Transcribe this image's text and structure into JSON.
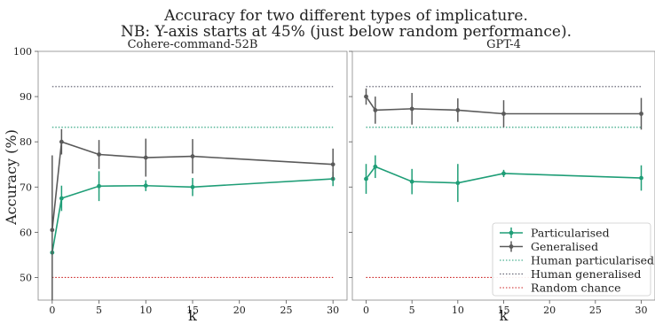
{
  "chart_data": {
    "type": "line",
    "title_line1": "Accuracy for two different types of implicature.",
    "title_line2": "NB: Y-axis starts at 45% (just below random performance).",
    "ylabel": "Accuracy (%)",
    "xlabel": "k",
    "ylim": [
      45,
      100
    ],
    "xlim": [
      -1.5,
      31.5
    ],
    "x_ticks": [
      0,
      5,
      10,
      15,
      20,
      25,
      30
    ],
    "y_ticks": [
      50,
      60,
      70,
      80,
      90,
      100
    ],
    "grid": false,
    "legend_position": "lower-right (second panel)",
    "legend": [
      {
        "label": "Particularised",
        "style": "errorbar",
        "color": "#1f9e77"
      },
      {
        "label": "Generalised",
        "style": "errorbar",
        "color": "#5a5a5a"
      },
      {
        "label": "Human particularised",
        "style": "dotted",
        "color": "#1f9e77"
      },
      {
        "label": "Human generalised",
        "style": "dotted",
        "color": "#555566"
      },
      {
        "label": "Random chance",
        "style": "dotted",
        "color": "#cc2222"
      }
    ],
    "reference_lines": {
      "human_particularised": 83.2,
      "human_generalised": 92.2,
      "random_chance": 50.0
    },
    "panels": [
      {
        "subtitle": "Cohere-command-52B",
        "x": [
          0,
          1,
          5,
          10,
          15,
          30
        ],
        "series": [
          {
            "name": "Particularised",
            "color": "#1f9e77",
            "values": [
              55.5,
              67.5,
              70.2,
              70.3,
              70.0,
              71.8
            ],
            "errors": [
              0,
              2.8,
              3.3,
              1.2,
              2.0,
              1.6
            ]
          },
          {
            "name": "Generalised",
            "color": "#5a5a5a",
            "values": [
              60.5,
              80.0,
              77.2,
              76.5,
              76.8,
              75.0
            ],
            "errors": [
              16.5,
              2.8,
              3.2,
              4.2,
              3.8,
              3.5
            ]
          }
        ]
      },
      {
        "subtitle": "GPT-4",
        "x": [
          0,
          1,
          5,
          10,
          15,
          30
        ],
        "series": [
          {
            "name": "Particularised",
            "color": "#1f9e77",
            "values": [
              71.8,
              74.5,
              71.2,
              70.9,
              73.0,
              72.0
            ],
            "errors": [
              3.3,
              2.5,
              2.8,
              4.2,
              0.8,
              2.8
            ]
          },
          {
            "name": "Generalised",
            "color": "#5a5a5a",
            "values": [
              90.0,
              87.0,
              87.3,
              87.0,
              86.2,
              86.2
            ],
            "errors": [
              1.8,
              3.0,
              3.5,
              2.6,
              3.0,
              3.5
            ]
          }
        ]
      }
    ]
  }
}
